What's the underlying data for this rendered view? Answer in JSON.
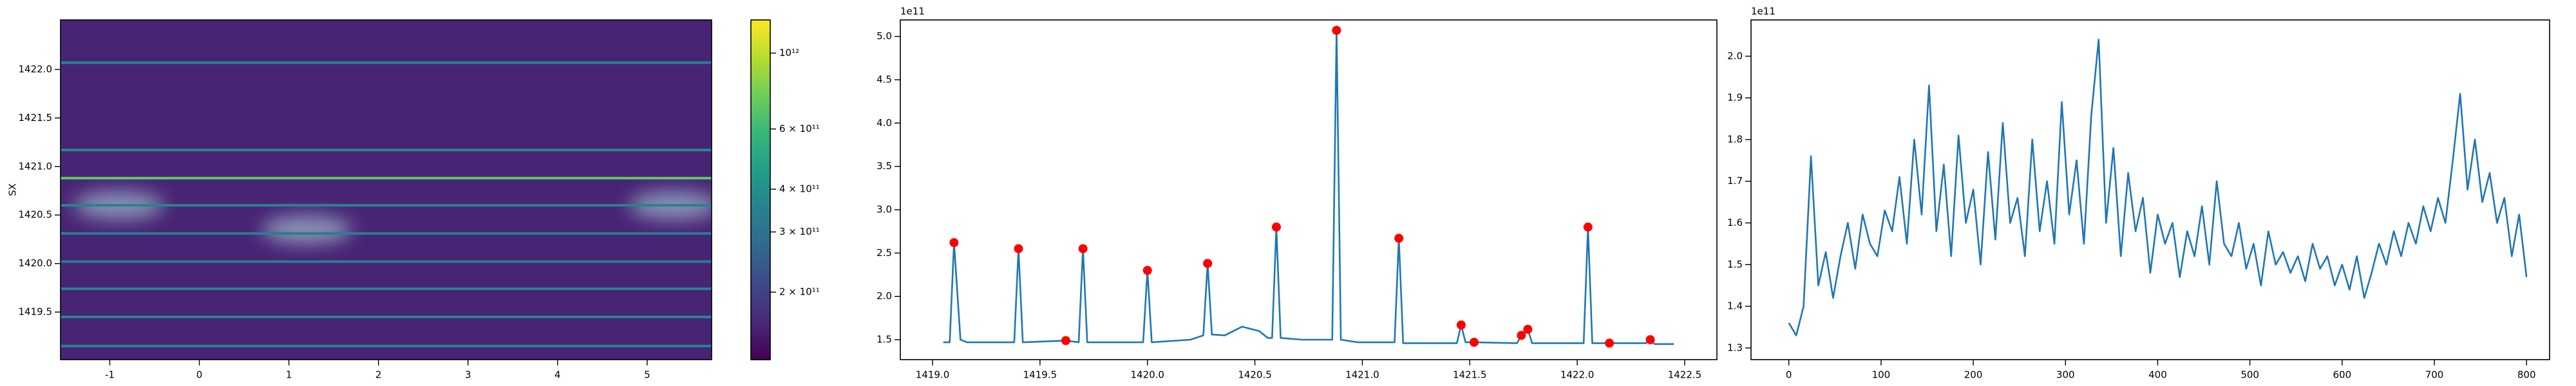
{
  "chart_data": [
    {
      "type": "heatmap",
      "ylabel": "SX",
      "xlim": [
        -1.55,
        5.72
      ],
      "ylim": [
        1419.01,
        1422.51
      ],
      "xticks": [
        -1,
        0,
        1,
        2,
        3,
        4,
        5
      ],
      "yticks": [
        {
          "value": 1419.5,
          "label": "1419.5"
        },
        {
          "value": 1420.0,
          "label": "1420.0"
        },
        {
          "value": 1420.5,
          "label": "1420.5"
        },
        {
          "value": 1421.0,
          "label": "1421.0"
        },
        {
          "value": 1421.5,
          "label": "1421.5"
        },
        {
          "value": 1422.0,
          "label": "1422.0"
        }
      ],
      "background_value": 160000000000,
      "rows_y": [
        1419.15,
        1419.45,
        1419.74,
        1420.02,
        1420.31,
        1420.6,
        1420.88,
        1421.17,
        1422.07
      ],
      "rows_values": [
        350000000000,
        380000000000,
        360000000000,
        340000000000,
        340000000000,
        360000000000,
        700000000000,
        380000000000,
        350000000000
      ],
      "blobs_x": [
        -0.9,
        1.2,
        5.3
      ],
      "blobs_y": [
        1420.6,
        1420.35,
        1420.6
      ],
      "blobs_values": [
        300000000000,
        300000000000,
        300000000000
      ],
      "colormap": "viridis",
      "colorbar": {
        "scale": "log",
        "ylim": [
          127000000000,
          1250000000000
        ],
        "yticks": [
          {
            "value": 200000000000,
            "label": "2 × 10¹¹"
          },
          {
            "value": 300000000000,
            "label": "3 × 10¹¹"
          },
          {
            "value": 400000000000,
            "label": "4 × 10¹¹"
          },
          {
            "value": 600000000000,
            "label": "6 × 10¹¹"
          },
          {
            "value": 1000000000000,
            "label": "10¹²"
          }
        ]
      }
    },
    {
      "type": "line",
      "offset_label": "1e11",
      "color": "#1f77b4",
      "xlim": [
        1418.85,
        1422.65
      ],
      "ylim": [
        1.27,
        5.19
      ],
      "xticks": [
        {
          "value": 1419.0,
          "label": "1419.0"
        },
        1419.5,
        {
          "value": 1420.0,
          "label": "1420.0"
        },
        1420.5,
        {
          "value": 1421.0,
          "label": "1421.0"
        },
        1421.5,
        {
          "value": 1422.0,
          "label": "1422.0"
        },
        1422.5
      ],
      "yticks": [
        1.5,
        {
          "value": 2.0,
          "label": "2.0"
        },
        2.5,
        {
          "value": 3.0,
          "label": "3.0"
        },
        3.5,
        {
          "value": 4.0,
          "label": "4.0"
        },
        4.5,
        {
          "value": 5.0,
          "label": "5.0"
        }
      ],
      "x": [
        1419.05,
        1419.08,
        1419.1,
        1419.13,
        1419.16,
        1419.38,
        1419.4,
        1419.42,
        1419.62,
        1419.68,
        1419.7,
        1419.72,
        1419.98,
        1420.0,
        1420.02,
        1420.2,
        1420.26,
        1420.28,
        1420.3,
        1420.36,
        1420.44,
        1420.52,
        1420.56,
        1420.58,
        1420.6,
        1420.62,
        1420.72,
        1420.82,
        1420.86,
        1420.88,
        1420.9,
        1420.98,
        1421.15,
        1421.17,
        1421.19,
        1421.44,
        1421.46,
        1421.48,
        1421.52,
        1421.72,
        1421.74,
        1421.77,
        1421.79,
        1422.03,
        1422.05,
        1422.07,
        1422.15,
        1422.32,
        1422.34,
        1422.36,
        1422.45
      ],
      "values": [
        1.47,
        1.47,
        2.62,
        1.5,
        1.47,
        1.47,
        2.55,
        1.47,
        1.49,
        1.47,
        2.55,
        1.47,
        1.47,
        2.3,
        1.47,
        1.5,
        1.55,
        2.38,
        1.56,
        1.55,
        1.65,
        1.6,
        1.52,
        1.52,
        2.8,
        1.52,
        1.5,
        1.5,
        1.5,
        5.07,
        1.5,
        1.47,
        1.47,
        2.67,
        1.46,
        1.46,
        1.67,
        1.47,
        1.47,
        1.46,
        1.55,
        1.62,
        1.46,
        1.46,
        2.8,
        1.46,
        1.46,
        1.46,
        1.5,
        1.45,
        1.45
      ],
      "markers": {
        "color": "#ff0000",
        "x": [
          1419.1,
          1419.4,
          1419.62,
          1419.7,
          1420.0,
          1420.28,
          1420.6,
          1420.88,
          1421.17,
          1421.46,
          1421.52,
          1421.74,
          1421.77,
          1422.05,
          1422.15,
          1422.34
        ],
        "values": [
          2.62,
          2.55,
          1.49,
          2.55,
          2.3,
          2.38,
          2.8,
          5.07,
          2.67,
          1.67,
          1.47,
          1.55,
          1.62,
          2.8,
          1.46,
          1.5
        ]
      }
    },
    {
      "type": "line",
      "offset_label": "1e11",
      "color": "#1f77b4",
      "xlim": [
        -41,
        825
      ],
      "ylim": [
        1.272,
        2.087
      ],
      "xticks": [
        0,
        100,
        200,
        300,
        400,
        500,
        600,
        700,
        800
      ],
      "yticks": [
        1.3,
        1.4,
        1.5,
        1.6,
        1.7,
        1.8,
        1.9,
        {
          "value": 2.0,
          "label": "2.0"
        }
      ],
      "x": [
        0,
        8,
        16,
        24,
        32,
        40,
        48,
        56,
        64,
        72,
        80,
        88,
        96,
        104,
        112,
        120,
        128,
        136,
        144,
        152,
        160,
        168,
        176,
        184,
        192,
        200,
        208,
        216,
        224,
        232,
        240,
        248,
        256,
        264,
        272,
        280,
        288,
        296,
        304,
        312,
        320,
        328,
        336,
        344,
        352,
        360,
        368,
        376,
        384,
        392,
        400,
        408,
        416,
        424,
        432,
        440,
        448,
        456,
        464,
        472,
        480,
        488,
        496,
        504,
        512,
        520,
        528,
        536,
        544,
        552,
        560,
        568,
        576,
        584,
        592,
        600,
        608,
        616,
        624,
        632,
        640,
        648,
        656,
        664,
        672,
        680,
        688,
        696,
        704,
        712,
        720,
        728,
        736,
        744,
        752,
        760,
        768,
        776,
        784,
        792,
        800
      ],
      "values": [
        1.36,
        1.33,
        1.4,
        1.76,
        1.45,
        1.53,
        1.42,
        1.52,
        1.6,
        1.49,
        1.62,
        1.55,
        1.52,
        1.63,
        1.58,
        1.71,
        1.55,
        1.8,
        1.62,
        1.93,
        1.58,
        1.74,
        1.52,
        1.81,
        1.6,
        1.68,
        1.5,
        1.77,
        1.56,
        1.84,
        1.6,
        1.66,
        1.52,
        1.8,
        1.58,
        1.7,
        1.55,
        1.89,
        1.62,
        1.75,
        1.55,
        1.86,
        2.04,
        1.6,
        1.78,
        1.52,
        1.72,
        1.58,
        1.66,
        1.48,
        1.62,
        1.55,
        1.6,
        1.47,
        1.58,
        1.52,
        1.64,
        1.5,
        1.7,
        1.55,
        1.52,
        1.6,
        1.49,
        1.55,
        1.45,
        1.58,
        1.5,
        1.53,
        1.48,
        1.52,
        1.46,
        1.55,
        1.49,
        1.52,
        1.45,
        1.5,
        1.44,
        1.52,
        1.42,
        1.48,
        1.55,
        1.5,
        1.58,
        1.52,
        1.6,
        1.55,
        1.64,
        1.58,
        1.66,
        1.6,
        1.75,
        1.91,
        1.68,
        1.8,
        1.65,
        1.72,
        1.6,
        1.66,
        1.52,
        1.62,
        1.47
      ]
    }
  ]
}
